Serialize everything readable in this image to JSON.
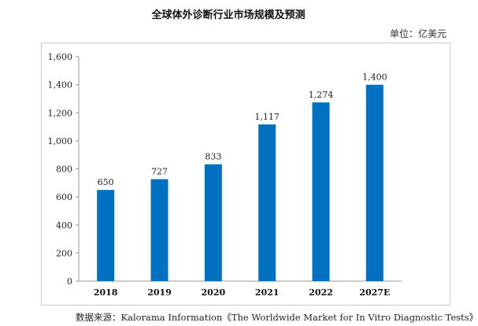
{
  "chart_data": {
    "type": "bar",
    "title": "全球体外诊断行业市场规模及预测",
    "unit_label": "单位：亿美元",
    "categories": [
      "2018",
      "2019",
      "2020",
      "2021",
      "2022",
      "2027E"
    ],
    "values": [
      650,
      727,
      833,
      1117,
      1274,
      1400
    ],
    "value_labels": [
      "650",
      "727",
      "833",
      "1,117",
      "1,274",
      "1,400"
    ],
    "y_ticks": [
      "0",
      "200",
      "400",
      "600",
      "800",
      "1,000",
      "1,200",
      "1,400",
      "1,600"
    ],
    "ylim": [
      0,
      1600
    ],
    "grid": false,
    "bar_color": "#0070C0"
  },
  "source": {
    "prefix": "数据来源：",
    "text": "Kalorama Information《The Worldwide Market for In Vitro Diagnostic Tests》"
  }
}
